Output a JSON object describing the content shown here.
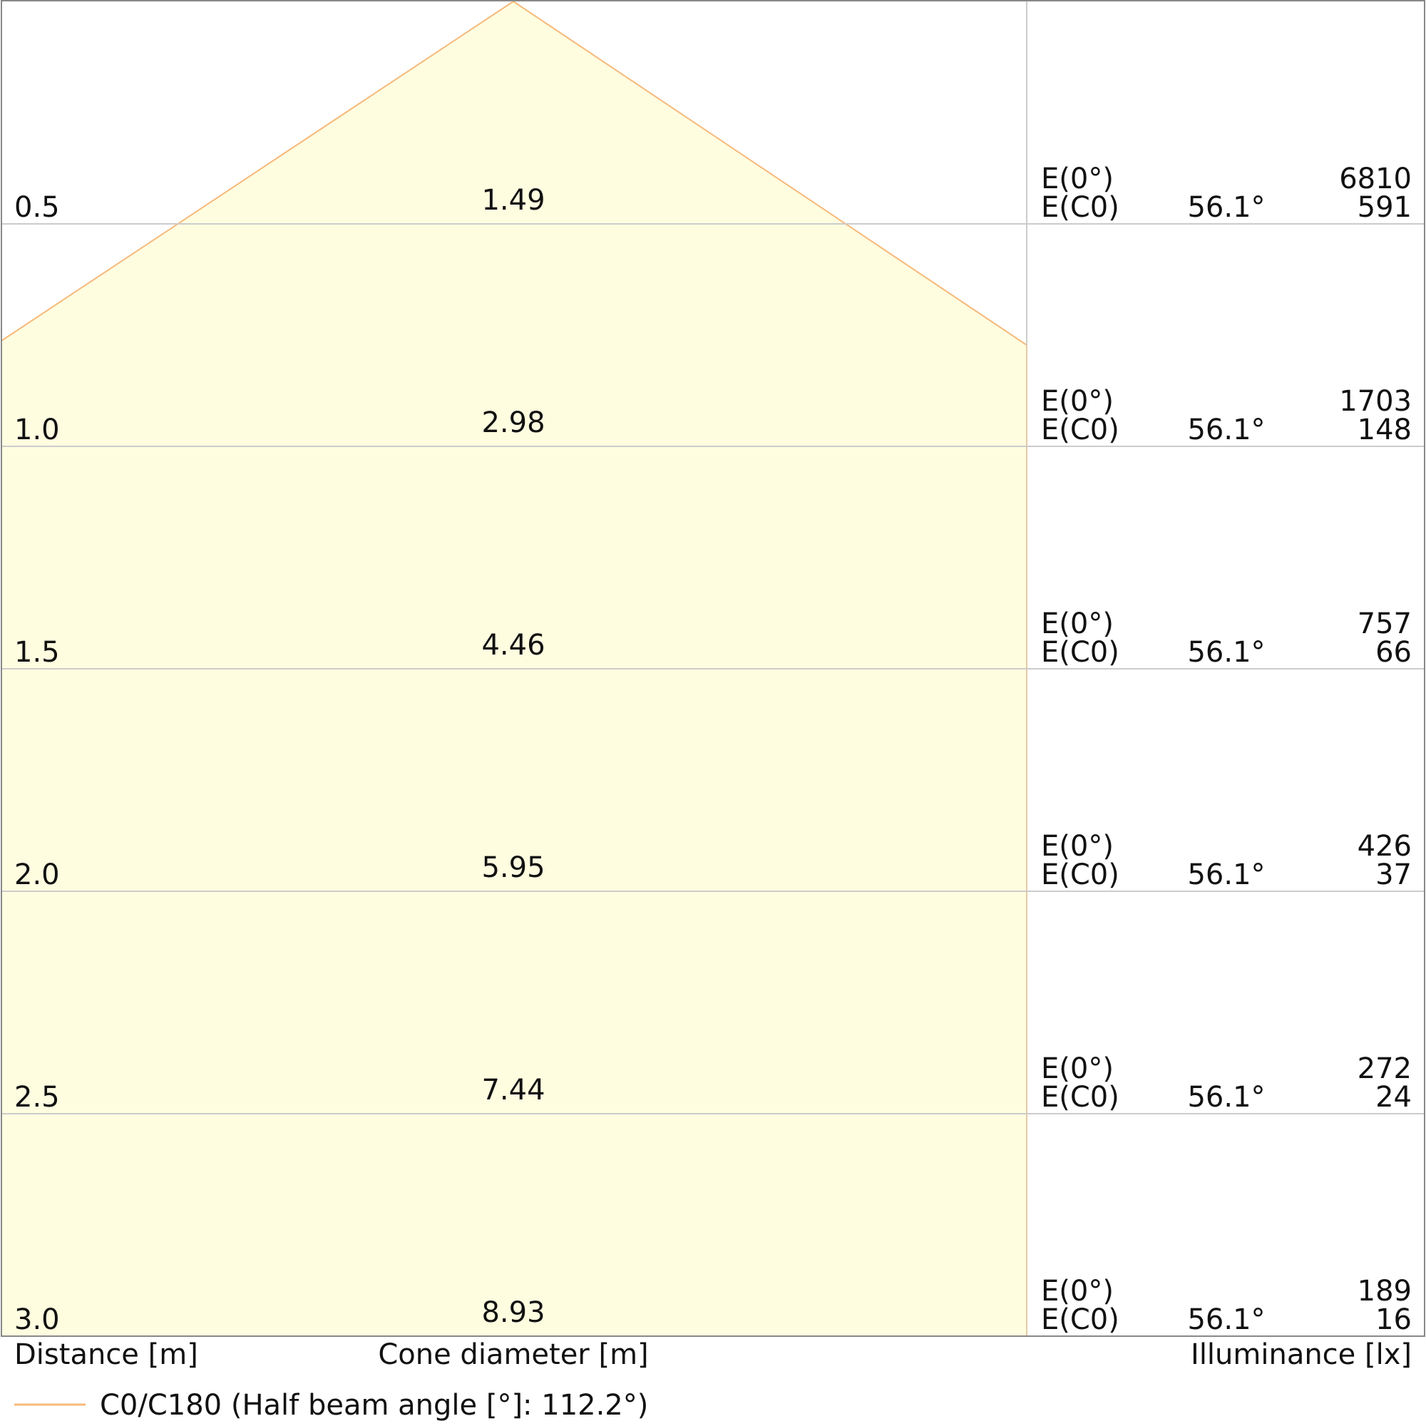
{
  "chart_data": {
    "type": "cone-diagram",
    "axis_labels": {
      "distance": "Distance [m]",
      "cone_diameter": "Cone diameter [m]",
      "illuminance": "Illuminance [lx]"
    },
    "legend": {
      "label": "C0/C180 (Half beam angle [°]: 112.2°)",
      "color": "#f7b97a"
    },
    "colors": {
      "cone_fill": "#fffde0",
      "cone_stroke": "#f7b97a",
      "grid": "#cccccc",
      "frame": "#888888"
    },
    "row_labels": {
      "e0": "E(0°)",
      "ec0": "E(C0)"
    },
    "cone_max_diameter": 8.93,
    "rows": [
      {
        "distance": "0.5",
        "diameter": "1.49",
        "angle": "56.1°",
        "e0": "6810",
        "ec0": "591"
      },
      {
        "distance": "1.0",
        "diameter": "2.98",
        "angle": "56.1°",
        "e0": "1703",
        "ec0": "148"
      },
      {
        "distance": "1.5",
        "diameter": "4.46",
        "angle": "56.1°",
        "e0": "757",
        "ec0": "66"
      },
      {
        "distance": "2.0",
        "diameter": "5.95",
        "angle": "56.1°",
        "e0": "426",
        "ec0": "37"
      },
      {
        "distance": "2.5",
        "diameter": "7.44",
        "angle": "56.1°",
        "e0": "272",
        "ec0": "24"
      },
      {
        "distance": "3.0",
        "diameter": "8.93",
        "angle": "56.1°",
        "e0": "189",
        "ec0": "16"
      }
    ]
  }
}
